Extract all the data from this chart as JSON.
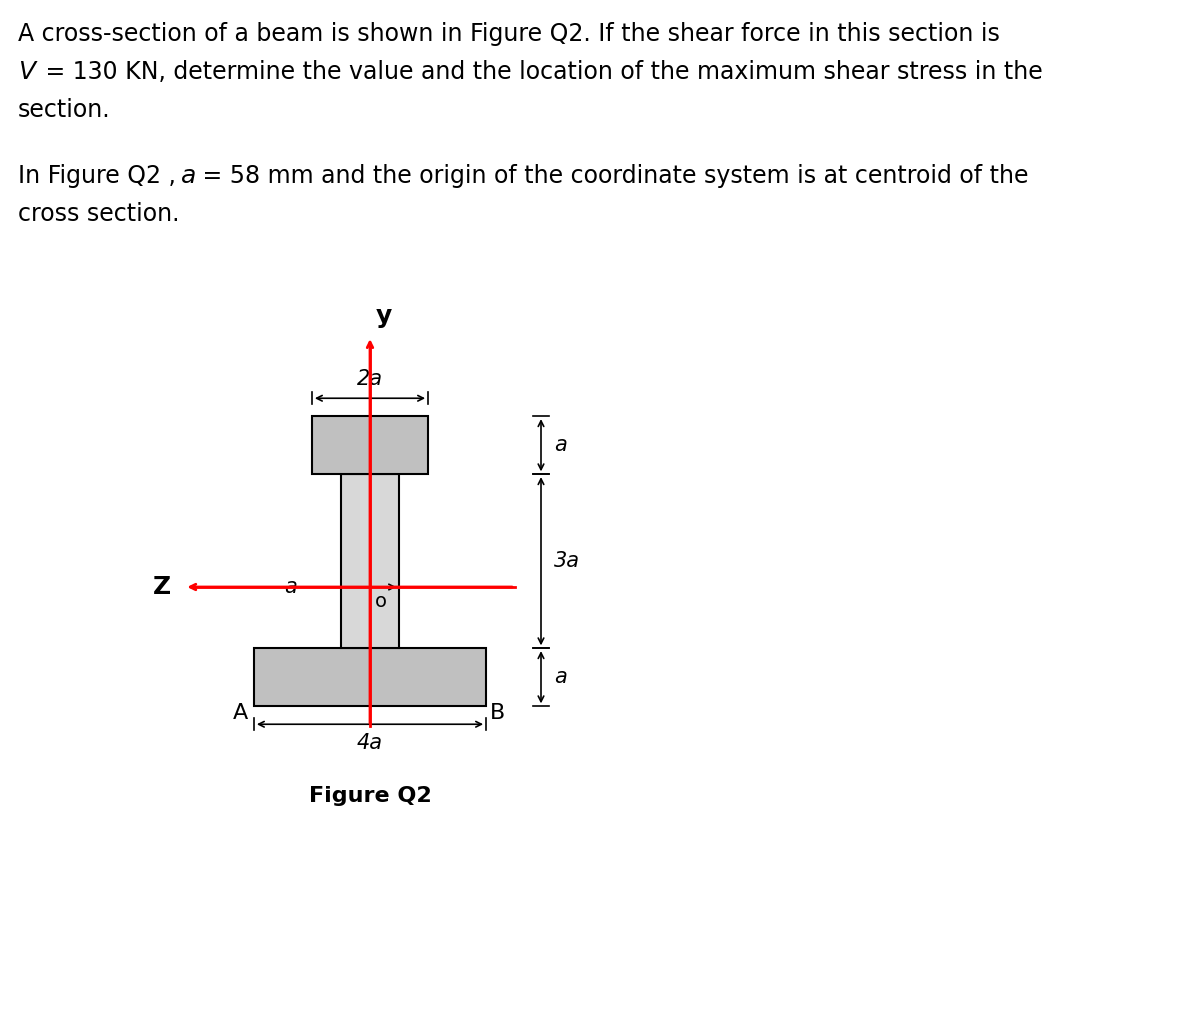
{
  "text_line1": "A cross-section of a beam is shown in Figure Q2. If the shear force in this section is",
  "text_line2a": "V",
  "text_line2b": " = 130 KN, determine the value and the location of the maximum shear stress in the",
  "text_line3": "section.",
  "text_line4a": "In Figure Q2 , ",
  "text_line4b": "a",
  "text_line4c": " = 58 mm and the origin of the coordinate system is at centroid of the",
  "text_line5": "cross section.",
  "figure_caption": "Figure Q2",
  "bg_color": "#ffffff",
  "shape_fill": "#c0c0c0",
  "web_fill": "#d8d8d8",
  "shape_edge": "#000000",
  "red_color": "#ff0000",
  "label_A": "A",
  "label_B": "B",
  "label_O": "o",
  "label_Z": "Z",
  "label_Y": "y",
  "dim_2a": "2a",
  "dim_4a": "4a",
  "dim_3a": "3a",
  "dim_a_top": "a",
  "dim_a_bot": "a",
  "dim_a_left": "a"
}
